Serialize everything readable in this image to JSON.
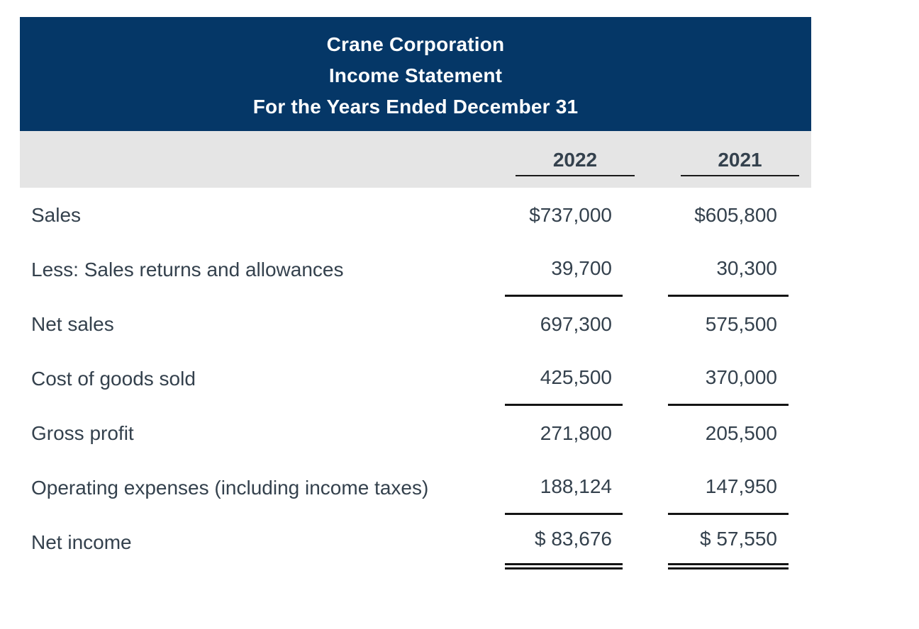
{
  "header": {
    "company": "Crane Corporation",
    "statement": "Income Statement",
    "period": "For the Years Ended December 31"
  },
  "columns": [
    "2022",
    "2021"
  ],
  "rows": [
    {
      "label": "Sales",
      "v2022": "$737,000",
      "v2021": "$605,800",
      "rule": "none"
    },
    {
      "label": "Less: Sales returns and allowances",
      "v2022": "39,700",
      "v2021": "30,300",
      "rule": "single"
    },
    {
      "label": "Net sales",
      "v2022": "697,300",
      "v2021": "575,500",
      "rule": "none"
    },
    {
      "label": "Cost of goods sold",
      "v2022": "425,500",
      "v2021": "370,000",
      "rule": "single"
    },
    {
      "label": "Gross profit",
      "v2022": "271,800",
      "v2021": "205,500",
      "rule": "none"
    },
    {
      "label": "Operating expenses (including income taxes)",
      "v2022": "188,124",
      "v2021": "147,950",
      "rule": "single"
    },
    {
      "label": "Net income",
      "v2022": "$ 83,676",
      "v2021": "$ 57,550",
      "rule": "double"
    }
  ],
  "colors": {
    "header_background": "#053767",
    "header_text": "#ffffff",
    "year_band_background": "#e5e5e5",
    "body_text": "#34414d",
    "rule": "#141414"
  }
}
